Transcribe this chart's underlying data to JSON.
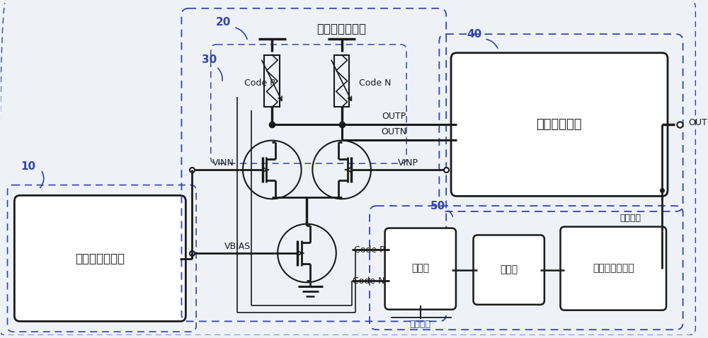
{
  "bg_color": "#eef2f7",
  "dashed_color": "#3344aa",
  "solid_color": "#1a1a1a",
  "box_fill": "#ffffff",
  "label_10": "10",
  "label_20": "20",
  "label_30": "30",
  "label_40": "40",
  "label_50": "50",
  "box1_label": "接收器偏置电路",
  "box2_label": "接收器第二级",
  "box3_label": "解码器",
  "box4_label": "比较器",
  "box5_label": "占空比检测电路",
  "title_label": "接收器主体电路",
  "vinn_label": "VINN",
  "vinp_label": "VINP",
  "vbias_label": "VBIAS",
  "outp_label": "OUTP",
  "outn_label": "OUTN",
  "out_label": "OUT",
  "code_p1": "Code P",
  "code_n1": "Code N",
  "code_p2": "Code P",
  "code_n2": "Code N",
  "ctrl_label": "控制方式",
  "enable_label": "使能输入",
  "figsize": [
    10.0,
    4.78
  ],
  "dpi": 100
}
